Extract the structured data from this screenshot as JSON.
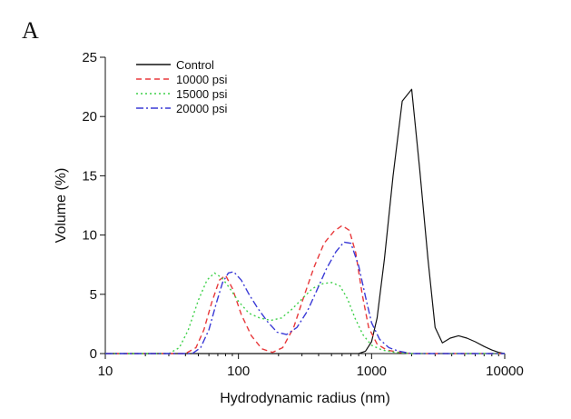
{
  "panel_label": "A",
  "chart_data": {
    "type": "line",
    "title": "",
    "xlabel": "Hydrodynamic radius (nm)",
    "ylabel": "Volume (%)",
    "xscale": "log",
    "xlim": [
      10,
      10000
    ],
    "ylim": [
      0,
      25
    ],
    "xticks": [
      10,
      100,
      1000,
      10000
    ],
    "xtick_labels": [
      "10",
      "100",
      "1000",
      "10000"
    ],
    "yticks": [
      0,
      5,
      10,
      15,
      20,
      25
    ],
    "ytick_labels": [
      "0",
      "5",
      "10",
      "15",
      "20",
      "25"
    ],
    "grid": false,
    "legend_position": "top-left",
    "series": [
      {
        "name": "Control",
        "color": "#111111",
        "dash": "solid",
        "x": [
          10,
          800,
          900,
          1000,
          1100,
          1250,
          1450,
          1700,
          2000,
          2300,
          2650,
          3000,
          3400,
          3900,
          4500,
          5200,
          6000,
          7000,
          8000,
          9000,
          10000
        ],
        "y": [
          0,
          0,
          0.2,
          1.0,
          3.0,
          8.0,
          15.0,
          21.3,
          22.3,
          15.5,
          8.0,
          2.2,
          0.9,
          1.3,
          1.5,
          1.3,
          1.0,
          0.6,
          0.3,
          0.1,
          0
        ]
      },
      {
        "name": "10000 psi",
        "color": "#e8393b",
        "dash": "dash",
        "x": [
          10,
          40,
          48,
          55,
          63,
          72,
          80,
          90,
          105,
          125,
          150,
          180,
          215,
          260,
          310,
          370,
          440,
          520,
          600,
          680,
          760,
          850,
          950,
          1100,
          1300,
          1600,
          2000,
          10000
        ],
        "y": [
          0,
          0,
          0.5,
          2.0,
          4.3,
          6.2,
          6.6,
          5.5,
          3.3,
          1.5,
          0.4,
          0.1,
          0.5,
          2.2,
          4.8,
          7.3,
          9.3,
          10.3,
          10.8,
          10.4,
          8.5,
          5.0,
          2.2,
          0.8,
          0.3,
          0.1,
          0,
          0
        ]
      },
      {
        "name": "15000 psi",
        "color": "#3fd14a",
        "dash": "dot",
        "x": [
          10,
          30,
          36,
          42,
          50,
          58,
          66,
          75,
          85,
          100,
          120,
          145,
          175,
          210,
          250,
          300,
          360,
          430,
          500,
          580,
          660,
          750,
          860,
          1000,
          1200,
          1500,
          2000,
          10000
        ],
        "y": [
          0,
          0,
          0.5,
          2.0,
          4.5,
          6.2,
          6.8,
          6.4,
          5.6,
          4.4,
          3.4,
          3.0,
          2.8,
          3.0,
          3.7,
          4.6,
          5.5,
          5.9,
          6.0,
          5.7,
          4.6,
          3.0,
          1.6,
          0.7,
          0.3,
          0.1,
          0,
          0
        ]
      },
      {
        "name": "20000 psi",
        "color": "#3a3ad6",
        "dash": "dashdot",
        "x": [
          10,
          45,
          52,
          60,
          68,
          76,
          84,
          92,
          105,
          120,
          140,
          165,
          195,
          230,
          275,
          330,
          390,
          460,
          540,
          620,
          700,
          800,
          900,
          1000,
          1150,
          1350,
          1600,
          2000,
          10000
        ],
        "y": [
          0,
          0,
          0.5,
          2.0,
          4.2,
          6.0,
          6.8,
          6.9,
          6.2,
          5.0,
          3.8,
          2.7,
          1.8,
          1.6,
          2.2,
          3.6,
          5.4,
          7.2,
          8.6,
          9.4,
          9.3,
          7.4,
          4.8,
          2.6,
          1.2,
          0.5,
          0.2,
          0,
          0
        ]
      }
    ]
  }
}
